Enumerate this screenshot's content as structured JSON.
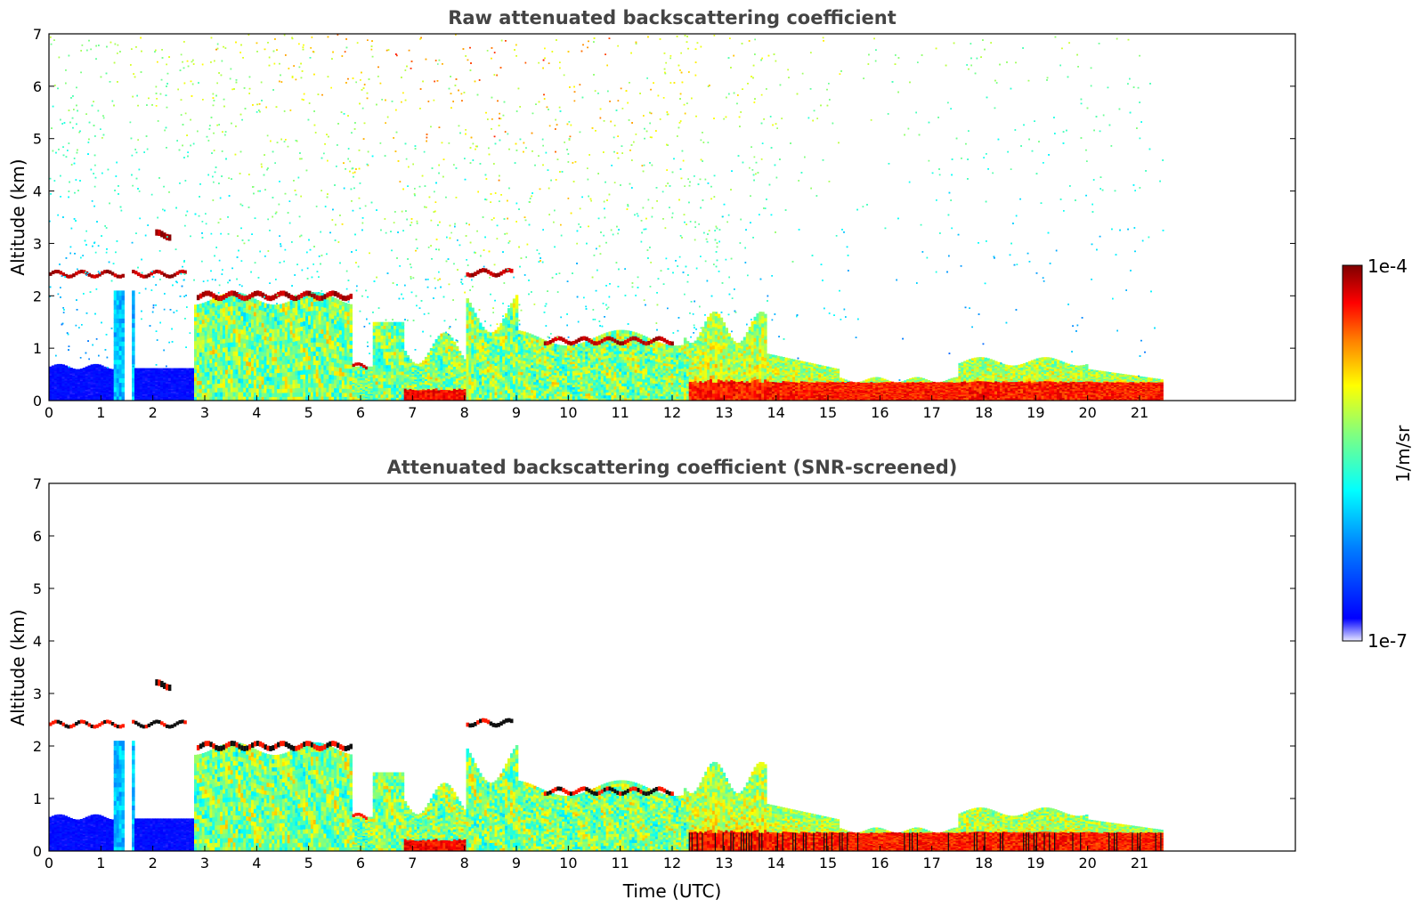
{
  "chart_data": [
    {
      "type": "heatmap",
      "title": "Raw attenuated backscattering coefficient",
      "xlabel": "",
      "ylabel": "Altitude (km)",
      "xlim": [
        0,
        24
      ],
      "ylim": [
        0,
        7
      ],
      "xticks": [
        "0",
        "1",
        "2",
        "3",
        "4",
        "5",
        "6",
        "7",
        "8",
        "9",
        "10",
        "11",
        "12",
        "13",
        "14",
        "15",
        "16",
        "17",
        "18",
        "19",
        "20",
        "21"
      ],
      "yticks": [
        "0",
        "1",
        "2",
        "3",
        "4",
        "5",
        "6",
        "7"
      ],
      "data_end_time": 21.45,
      "gap": [
        1.4,
        1.55
      ],
      "features": [
        {
          "name": "cloud layer",
          "time": [
            0,
            2.6
          ],
          "altitude_km": 2.38
        },
        {
          "name": "boundary layer top",
          "time": [
            2.8,
            5.8
          ],
          "altitude_km": 1.9
        },
        {
          "name": "cloud layer",
          "time": [
            8.0,
            8.9
          ],
          "altitude_km": 2.4
        },
        {
          "name": "cloud layer",
          "time": [
            9.5,
            12.0
          ],
          "altitude_km": 1.1
        },
        {
          "name": "surface aerosol",
          "time": [
            12.3,
            21.45
          ],
          "altitude_km": 0.15
        }
      ]
    },
    {
      "type": "heatmap",
      "title": "Attenuated backscattering coefficient (SNR-screened)",
      "xlabel": "Time (UTC)",
      "ylabel": "Altitude (km)",
      "xlim": [
        0,
        24
      ],
      "ylim": [
        0,
        7
      ],
      "xticks": [
        "0",
        "1",
        "2",
        "3",
        "4",
        "5",
        "6",
        "7",
        "8",
        "9",
        "10",
        "11",
        "12",
        "13",
        "14",
        "15",
        "16",
        "17",
        "18",
        "19",
        "20",
        "21"
      ],
      "yticks": [
        "0",
        "1",
        "2",
        "3",
        "4",
        "5",
        "6",
        "7"
      ],
      "data_end_time": 21.45
    }
  ],
  "colorbar": {
    "label": "1/m/sr",
    "max_label": "1e-4",
    "min_label": "1e-7",
    "colormap": [
      "#800000",
      "#ff0000",
      "#ff8000",
      "#ffff00",
      "#80ff80",
      "#00ffff",
      "#0080ff",
      "#0000ff",
      "#e6e6ff"
    ]
  }
}
